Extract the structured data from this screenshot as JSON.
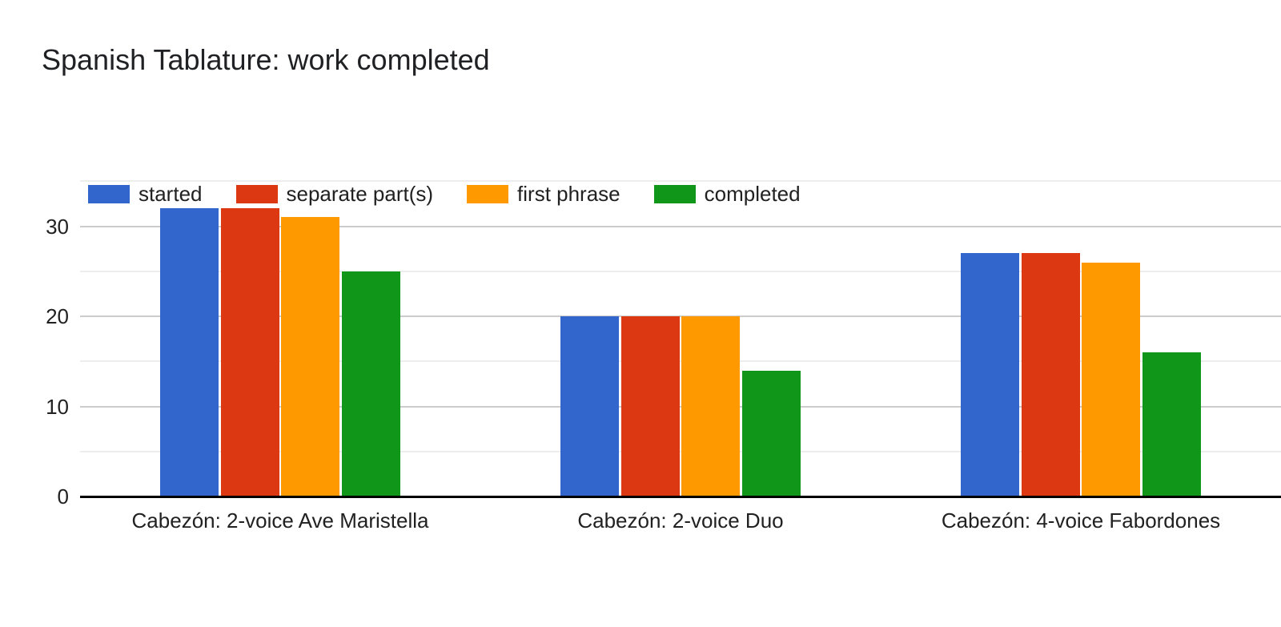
{
  "title": "Spanish Tablature: work completed",
  "chart_data": {
    "type": "bar",
    "title": "Spanish Tablature: work completed",
    "categories": [
      "Cabezón: 2-voice Ave Maristella",
      "Cabezón: 2-voice Duo",
      "Cabezón: 4-voice Fabordones"
    ],
    "series": [
      {
        "name": "started",
        "color": "#3366cc",
        "values": [
          32,
          20,
          27
        ]
      },
      {
        "name": "separate part(s)",
        "color": "#dc3912",
        "values": [
          32,
          20,
          27
        ]
      },
      {
        "name": "first phrase",
        "color": "#ff9900",
        "values": [
          31,
          20,
          26
        ]
      },
      {
        "name": "completed",
        "color": "#109618",
        "values": [
          25,
          14,
          16
        ]
      }
    ],
    "xlabel": "",
    "ylabel": "",
    "y_major_ticks": [
      0,
      10,
      20,
      30
    ],
    "y_minor_ticks": [
      5,
      15,
      25,
      35
    ],
    "ylim": [
      0,
      35.4
    ],
    "grid": true,
    "legend_position": "top",
    "axis_color": "#000000",
    "major_grid_color": "#cccccc",
    "minor_grid_color": "#ededed",
    "background_color": "#ffffff"
  }
}
